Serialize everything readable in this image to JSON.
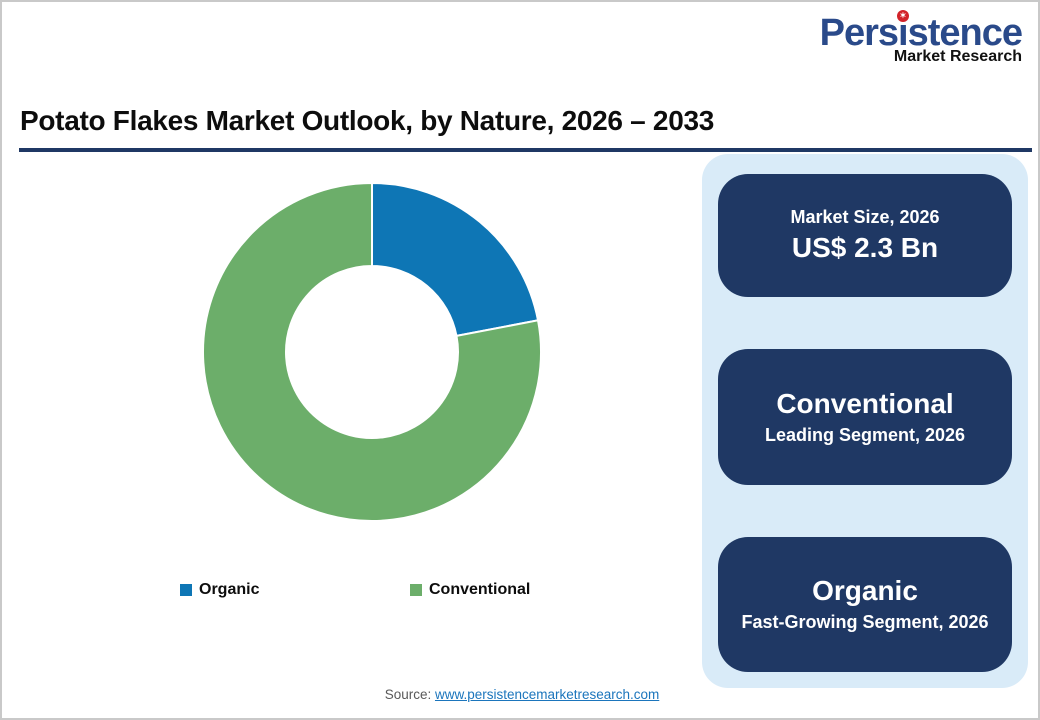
{
  "logo": {
    "word_part1": "Pers",
    "word_i": "ı",
    "word_part2": "stence",
    "star": "✶",
    "subtitle": "Market Research"
  },
  "header": {
    "title": "Potato Flakes Market Outlook, by Nature, 2026 – 2033"
  },
  "chart_data": {
    "type": "pie",
    "title": "Potato Flakes Market Outlook, by Nature, 2026 – 2033",
    "labels": [
      "Organic",
      "Conventional"
    ],
    "values": [
      22,
      78
    ],
    "colors": [
      "#0E76B5",
      "#6CAE6A"
    ],
    "hole": 0.51,
    "start_angle_deg": 0,
    "direction": "clockwise",
    "legend_position": "bottom"
  },
  "panel": {
    "boxes": [
      {
        "line1": "Market Size, 2026",
        "line2": "US$ 2.3 Bn"
      },
      {
        "line1": "Conventional",
        "line2": "Leading Segment, 2026"
      },
      {
        "line1": "Organic",
        "line2": "Fast-Growing Segment, 2026"
      }
    ]
  },
  "footer": {
    "source_label": "Source: ",
    "source_link": "www.persistencemarketresearch.com"
  },
  "colors": {
    "navy": "#1F3864",
    "panel_bg": "#D9EBF8",
    "logo_blue": "#2A4A8A",
    "logo_red": "#D2232A",
    "link_blue": "#1B75BC",
    "source_gray": "#595959",
    "chart_blue": "#0E76B5",
    "chart_green": "#6CAE6A"
  }
}
